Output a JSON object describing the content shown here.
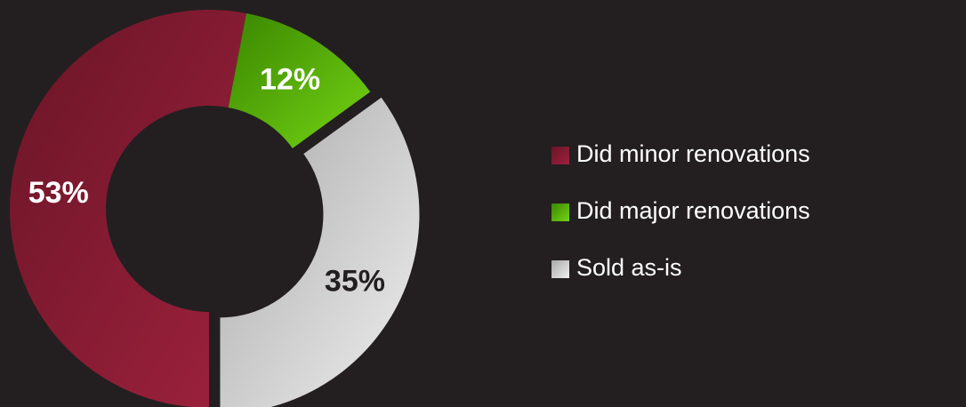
{
  "chart_data": {
    "type": "donut",
    "categories": [
      "Did minor renovations",
      "Did major renovations",
      "Sold as-is"
    ],
    "values": [
      53,
      12,
      35
    ],
    "value_labels": [
      "53%",
      "12%",
      "35%"
    ],
    "colors": [
      "#8a1c33",
      "#56b00a",
      "#d4d4d4"
    ],
    "legend": "right"
  }
}
